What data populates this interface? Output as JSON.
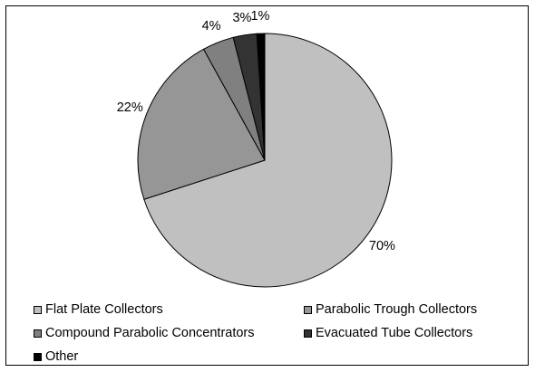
{
  "chart_data": {
    "type": "pie",
    "title": "",
    "slices": [
      {
        "label": "Flat Plate Collectors",
        "value": 70,
        "display": "70%",
        "color": "#c0c0c0"
      },
      {
        "label": "Parabolic Trough Collectors",
        "value": 22,
        "display": "22%",
        "color": "#969696"
      },
      {
        "label": "Compound Parabolic Concentrators",
        "value": 4,
        "display": "4%",
        "color": "#808080"
      },
      {
        "label": "Evacuated Tube Collectors",
        "value": 3,
        "display": "3%",
        "color": "#333333"
      },
      {
        "label": "Other",
        "value": 1,
        "display": "1%",
        "color": "#000000"
      }
    ],
    "legend_position": "bottom"
  }
}
